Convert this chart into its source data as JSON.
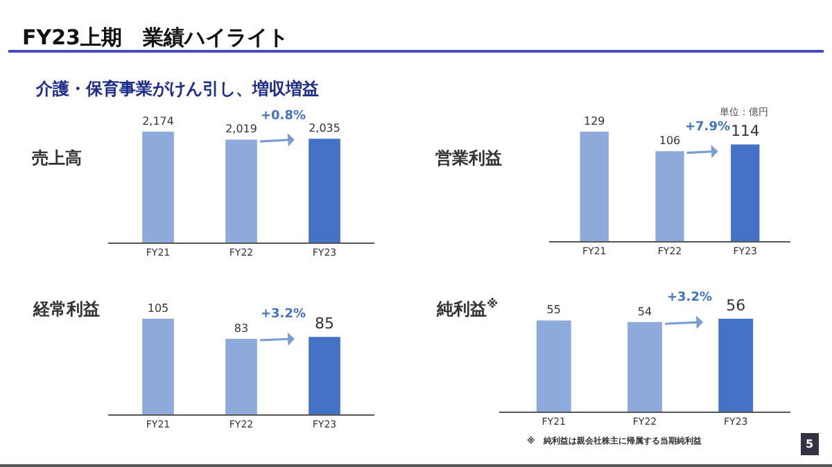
{
  "chart_data": [
    {
      "type": "bar",
      "title": "売上高",
      "categories": [
        "FY21",
        "FY22",
        "FY23"
      ],
      "values": [
        2174,
        2019,
        2035
      ],
      "colors": [
        "#8eaadb",
        "#8eaadb",
        "#4472c4"
      ],
      "data_labels": true,
      "value_labels": [
        "2,174",
        "2,019",
        "2,035"
      ],
      "annotations": [
        "FY23上期　業績ハイライト",
        "介護・保育事業がけん引し、増収増益",
        "+0.8%"
      ]
    },
    {
      "type": "bar",
      "title": "営業利益",
      "categories": [
        "FY21",
        "FY22",
        "FY23"
      ],
      "values": [
        129,
        106,
        114
      ],
      "colors": [
        "#8eaadb",
        "#8eaadb",
        "#4472c4"
      ],
      "data_labels": true,
      "annotations": [
        "単位：億円",
        "+7.9%"
      ]
    },
    {
      "type": "bar",
      "title": "経常利益",
      "categories": [
        "FY21",
        "FY22",
        "FY23"
      ],
      "values": [
        105,
        83,
        85
      ],
      "colors": [
        "#8eaadb",
        "#8eaadb",
        "#4472c4"
      ],
      "data_labels": true,
      "annotations": [
        "+3.2%"
      ]
    },
    {
      "type": "bar",
      "title": "純利益$^{※}$",
      "categories": [
        "FY21",
        "FY22",
        "FY23"
      ],
      "values": [
        55,
        54,
        56
      ],
      "colors": [
        "#8eaadb",
        "#8eaadb",
        "#4472c4"
      ],
      "data_labels": true,
      "annotations": [
        "※　純利益は親会社株主に帰属する当期純利益",
        "5",
        "+3.2%"
      ]
    }
  ]
}
